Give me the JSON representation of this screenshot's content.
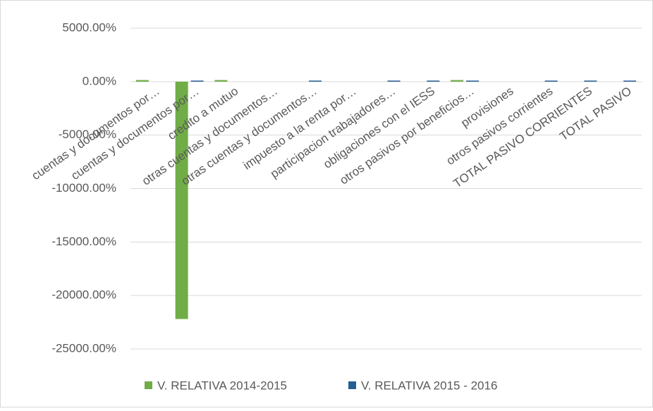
{
  "chart_data": {
    "type": "bar",
    "categories": [
      "cuentas y documentos por…",
      "cuentas y documentos por…",
      "credito a mutuo",
      "otras cuentas y documentos…",
      "otras cuentas y documentos…",
      "impuesto a la renta por…",
      "participacion trabajadores…",
      "obligaciones con el IESS",
      "otros pasivos por beneficios…",
      "provisiones",
      "otros pasivos corrientes",
      "TOTAL PASIVO CORRIENTES",
      "TOTAL PASIVO"
    ],
    "series": [
      {
        "name": "V. RELATIVA 2014-2015",
        "color": "#70ad47",
        "values": [
          150,
          -22200,
          150,
          null,
          null,
          null,
          null,
          null,
          150,
          null,
          null,
          null,
          null
        ]
      },
      {
        "name": "V. RELATIVA 2015 - 2016",
        "color": "#255e91",
        "values": [
          null,
          100,
          null,
          null,
          100,
          null,
          100,
          100,
          100,
          null,
          100,
          100,
          100
        ]
      }
    ],
    "ylim": [
      -25000,
      5000
    ],
    "yticks": [
      {
        "value": 5000,
        "label": "5000.00%"
      },
      {
        "value": 0,
        "label": "0.00%"
      },
      {
        "value": -5000,
        "label": "-5000.00%"
      },
      {
        "value": -10000,
        "label": "-10000.00%"
      },
      {
        "value": -15000,
        "label": "-15000.00%"
      },
      {
        "value": -20000,
        "label": "-20000.00%"
      },
      {
        "value": -25000,
        "label": "-25000.00%"
      }
    ],
    "grid": true,
    "legend": "bottom"
  }
}
